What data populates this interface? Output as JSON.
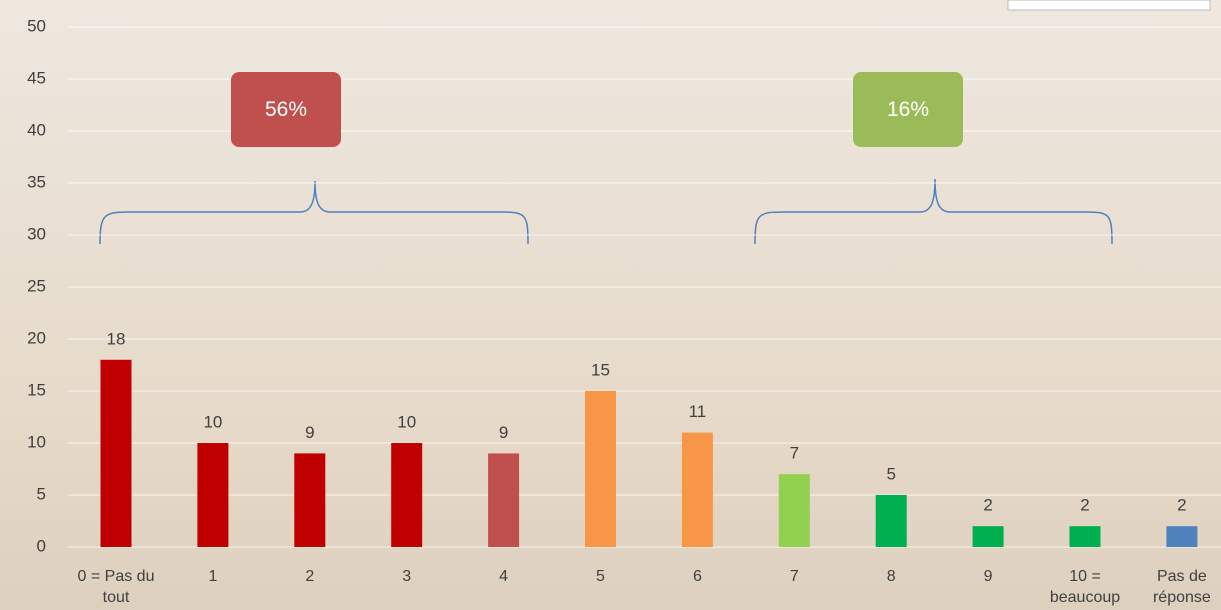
{
  "chart_data": {
    "type": "bar",
    "categories": [
      "0 = Pas du tout",
      "1",
      "2",
      "3",
      "4",
      "5",
      "6",
      "7",
      "8",
      "9",
      "10 = beaucoup",
      "Pas de réponse"
    ],
    "values": [
      18,
      10,
      9,
      10,
      9,
      15,
      11,
      7,
      5,
      2,
      2,
      2
    ],
    "colors": [
      "#c00000",
      "#c00000",
      "#c00000",
      "#c00000",
      "#c0504d",
      "#f79646",
      "#f79646",
      "#92d050",
      "#00b050",
      "#00b050",
      "#00b050",
      "#4f81bd"
    ],
    "ylim": [
      0,
      50
    ],
    "yticks": [
      0,
      5,
      10,
      15,
      20,
      25,
      30,
      35,
      40,
      45,
      50
    ],
    "grid": true,
    "annotations": [
      {
        "text": "56%",
        "color": "#c0504d"
      },
      {
        "text": "16%",
        "color": "#9bbb59"
      }
    ]
  }
}
